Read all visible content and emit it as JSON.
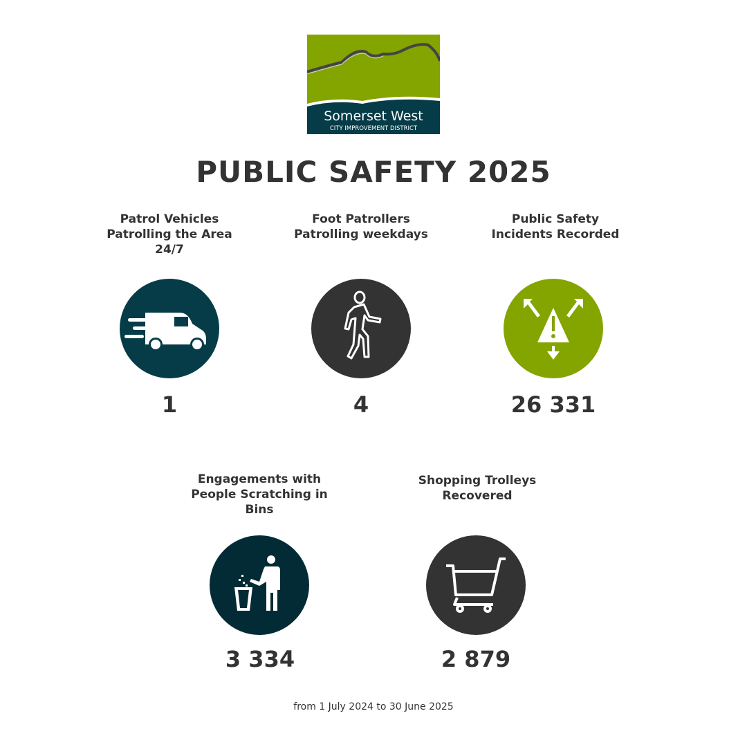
{
  "logo": {
    "line1": "Somerset West",
    "line2": "CITY IMPROVEMENT DISTRICT"
  },
  "title": "PUBLIC SAFETY 2025",
  "colors": {
    "teal": "#053c47",
    "dark": "#333333",
    "green": "#84a400",
    "navy": "#032b36"
  },
  "stats": [
    {
      "label": "Patrol Vehicles Patrolling the Area 24/7",
      "value": "1",
      "icon": "van-icon"
    },
    {
      "label": "Foot Patrollers Patrolling weekdays",
      "value": "4",
      "icon": "walking-person-icon"
    },
    {
      "label": "Public Safety Incidents Recorded",
      "value": "26 331",
      "icon": "warning-arrows-icon"
    },
    {
      "label": "Engagements with People Scratching in Bins",
      "value": "3 334",
      "icon": "person-bin-icon"
    },
    {
      "label": "Shopping Trolleys Recovered",
      "value": "2 879",
      "icon": "shopping-cart-icon"
    }
  ],
  "footer": "from 1 July 2024 to 30 June 2025"
}
